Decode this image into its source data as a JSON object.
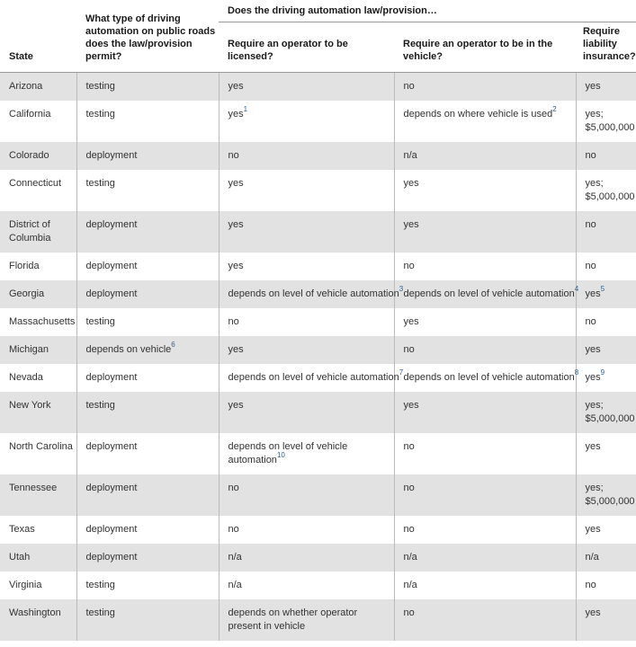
{
  "colors": {
    "footnote_blue": "#2e6093",
    "row_alt_gray": "#e2e2e2",
    "header_rule_gray": "#999999",
    "column_line_gray": "#bbbbbb"
  },
  "chart_data": {
    "type": "table",
    "title": "",
    "group_header": "Does the driving automation law/provision…",
    "group_header_spans_columns": [
      2,
      3,
      4
    ],
    "columns": [
      {
        "label": "State"
      },
      {
        "label": "What type of driving automation on public roads does the law/provision permit?"
      },
      {
        "label": "Require an operator to be licensed?"
      },
      {
        "label": "Require an operator to be in the vehicle?"
      },
      {
        "label": "Require liability insurance?"
      }
    ],
    "rows": [
      {
        "state": "Arizona",
        "type": {
          "text": "testing"
        },
        "licensed": {
          "text": "yes"
        },
        "in_vehicle": {
          "text": "no"
        },
        "insurance": {
          "text": "yes"
        }
      },
      {
        "state": "California",
        "type": {
          "text": "testing"
        },
        "licensed": {
          "text": "yes",
          "sup": "1"
        },
        "in_vehicle": {
          "text": "depends on where vehicle is used",
          "sup": "2"
        },
        "insurance": {
          "text": "yes; $5,000,000"
        }
      },
      {
        "state": "Colorado",
        "type": {
          "text": "deployment"
        },
        "licensed": {
          "text": "no"
        },
        "in_vehicle": {
          "text": "n/a"
        },
        "insurance": {
          "text": "no"
        }
      },
      {
        "state": "Connecticut",
        "type": {
          "text": "testing"
        },
        "licensed": {
          "text": "yes"
        },
        "in_vehicle": {
          "text": "yes"
        },
        "insurance": {
          "text": "yes; $5,000,000"
        }
      },
      {
        "state": "District of Columbia",
        "type": {
          "text": "deployment"
        },
        "licensed": {
          "text": "yes"
        },
        "in_vehicle": {
          "text": "yes"
        },
        "insurance": {
          "text": "no"
        }
      },
      {
        "state": "Florida",
        "type": {
          "text": "deployment"
        },
        "licensed": {
          "text": "yes"
        },
        "in_vehicle": {
          "text": "no"
        },
        "insurance": {
          "text": "no"
        }
      },
      {
        "state": "Georgia",
        "type": {
          "text": "deployment"
        },
        "licensed": {
          "text": "depends on level of vehicle automation",
          "sup": "3",
          "nowrap": true
        },
        "in_vehicle": {
          "text": "depends on level of vehicle automation",
          "sup": "4",
          "nowrap": true
        },
        "insurance": {
          "text": "yes",
          "sup": "5"
        }
      },
      {
        "state": "Massachusetts",
        "type": {
          "text": "testing"
        },
        "licensed": {
          "text": "no"
        },
        "in_vehicle": {
          "text": "yes"
        },
        "insurance": {
          "text": "no"
        }
      },
      {
        "state": "Michigan",
        "type": {
          "text": "depends on vehicle",
          "sup": "6"
        },
        "licensed": {
          "text": "yes"
        },
        "in_vehicle": {
          "text": "no"
        },
        "insurance": {
          "text": "yes"
        }
      },
      {
        "state": "Nevada",
        "type": {
          "text": "deployment"
        },
        "licensed": {
          "text": "depends on level of vehicle automation",
          "sup": "7",
          "nowrap": true
        },
        "in_vehicle": {
          "text": "depends on level of vehicle automation",
          "sup": "8",
          "nowrap": true
        },
        "insurance": {
          "text": "yes",
          "sup": "9"
        }
      },
      {
        "state": "New York",
        "type": {
          "text": "testing"
        },
        "licensed": {
          "text": "yes"
        },
        "in_vehicle": {
          "text": "yes"
        },
        "insurance": {
          "text": "yes; $5,000,000"
        }
      },
      {
        "state": "North Carolina",
        "type": {
          "text": "deployment"
        },
        "licensed": {
          "text": "depends on level of vehicle automation",
          "sup": "10"
        },
        "in_vehicle": {
          "text": "no"
        },
        "insurance": {
          "text": "yes"
        }
      },
      {
        "state": "Tennessee",
        "type": {
          "text": "deployment"
        },
        "licensed": {
          "text": "no"
        },
        "in_vehicle": {
          "text": "no"
        },
        "insurance": {
          "text": "yes; $5,000,000"
        }
      },
      {
        "state": "Texas",
        "type": {
          "text": "deployment"
        },
        "licensed": {
          "text": "no"
        },
        "in_vehicle": {
          "text": "no"
        },
        "insurance": {
          "text": "yes"
        }
      },
      {
        "state": "Utah",
        "type": {
          "text": "deployment"
        },
        "licensed": {
          "text": "n/a"
        },
        "in_vehicle": {
          "text": "n/a"
        },
        "insurance": {
          "text": "n/a"
        }
      },
      {
        "state": "Virginia",
        "type": {
          "text": "testing"
        },
        "licensed": {
          "text": "n/a"
        },
        "in_vehicle": {
          "text": "n/a"
        },
        "insurance": {
          "text": "no"
        }
      },
      {
        "state": "Washington",
        "type": {
          "text": "testing"
        },
        "licensed": {
          "text": "depends on whether operator present in vehicle"
        },
        "in_vehicle": {
          "text": "no"
        },
        "insurance": {
          "text": "yes"
        }
      }
    ]
  }
}
